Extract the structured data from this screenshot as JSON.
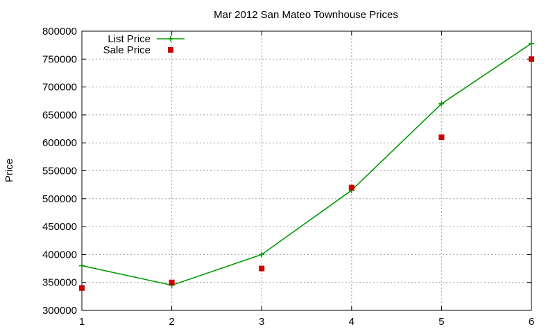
{
  "chart_data": {
    "type": "line",
    "title": "Mar 2012 San Mateo Townhouse Prices",
    "xlabel": "",
    "ylabel": "Price",
    "xlim": [
      1,
      6
    ],
    "ylim": [
      300000,
      800000
    ],
    "x_ticks": [
      1,
      2,
      3,
      4,
      5,
      6
    ],
    "y_ticks": [
      300000,
      350000,
      400000,
      450000,
      500000,
      550000,
      600000,
      650000,
      700000,
      750000,
      800000
    ],
    "grid": true,
    "legend_position": "top-left",
    "x": [
      1,
      2,
      3,
      4,
      5,
      6
    ],
    "series": [
      {
        "name": "List Price",
        "style": "line+cross",
        "color": "#009900",
        "values": [
          380000,
          345000,
          400000,
          515000,
          670000,
          778000
        ]
      },
      {
        "name": "Sale Price",
        "style": "square-points",
        "color": "#cc0000",
        "values": [
          340000,
          350000,
          375000,
          520000,
          610000,
          750000
        ]
      }
    ]
  }
}
